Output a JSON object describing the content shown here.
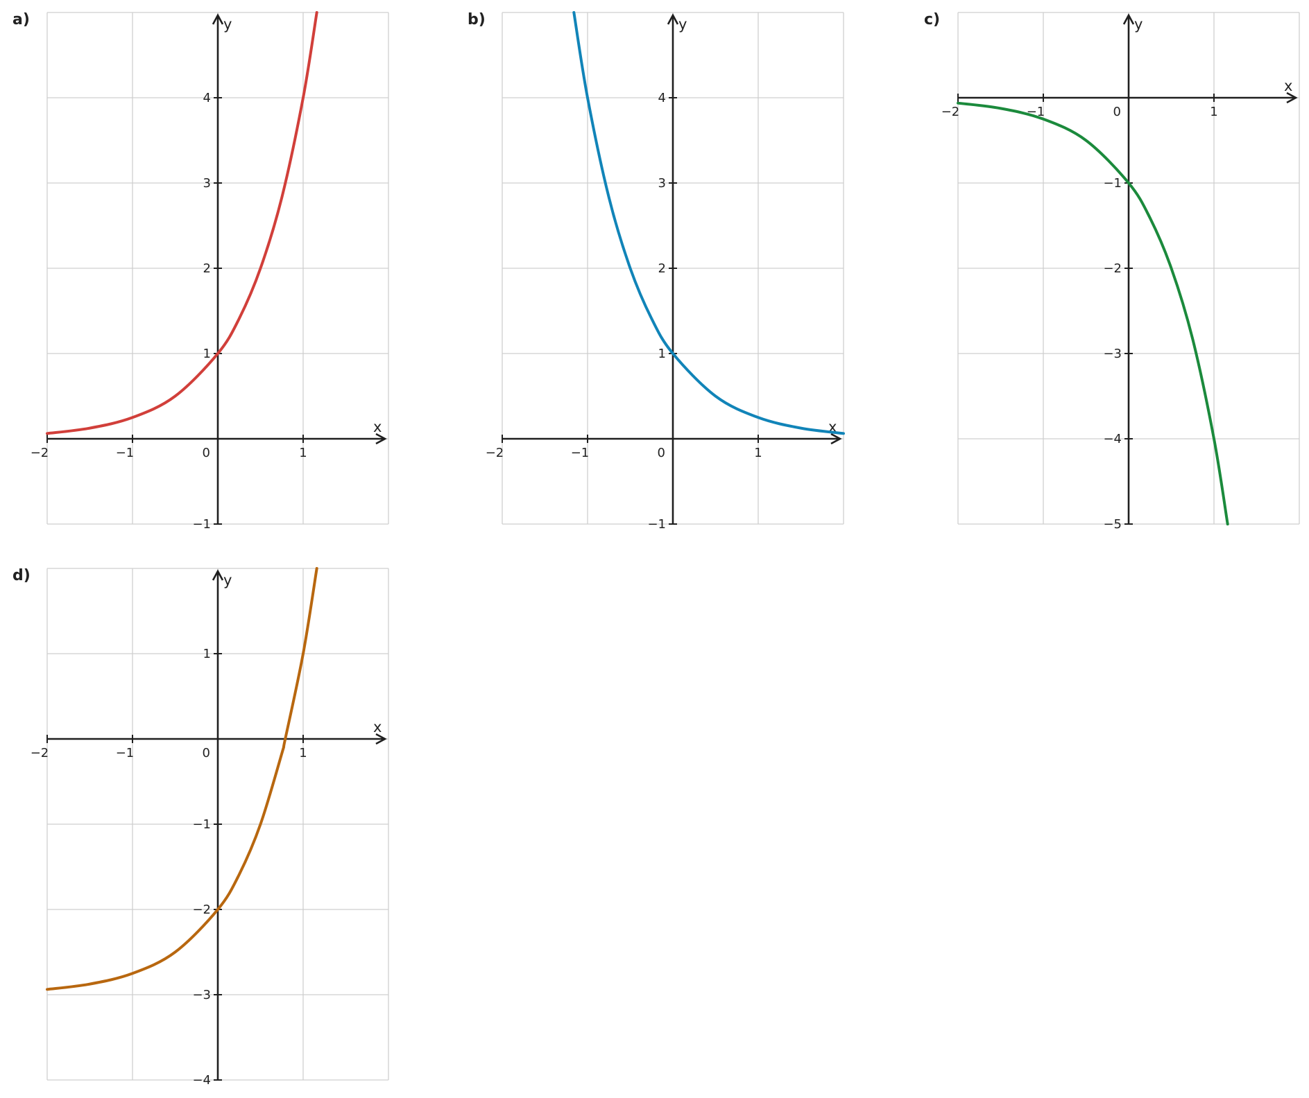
{
  "chart_data": [
    {
      "label": "a)",
      "type": "line",
      "xlim": [
        -2,
        2
      ],
      "ylim": [
        -1,
        5
      ],
      "x_ticks": [
        -2,
        -1,
        0,
        1
      ],
      "x_tick_labels": [
        "−2",
        "−1",
        "0",
        "1"
      ],
      "y_ticks": [
        -1,
        1,
        2,
        3,
        4
      ],
      "y_tick_labels": [
        "−1",
        "1",
        "2",
        "3",
        "4"
      ],
      "xlabel": "x",
      "ylabel": "y",
      "grid": true,
      "curve_color": "#d13f3a",
      "series": [
        {
          "x": [
            -2,
            -1.5,
            -1,
            -0.5,
            0,
            0.25,
            0.5,
            0.75,
            1,
            1.16
          ],
          "y": [
            0.0625,
            0.125,
            0.25,
            0.5,
            1,
            1.41,
            2,
            2.83,
            4,
            5
          ]
        }
      ]
    },
    {
      "label": "b)",
      "type": "line",
      "xlim": [
        -2,
        2
      ],
      "ylim": [
        -1,
        5
      ],
      "x_ticks": [
        -2,
        -1,
        0,
        1
      ],
      "x_tick_labels": [
        "−2",
        "−1",
        "0",
        "1"
      ],
      "y_ticks": [
        -1,
        1,
        2,
        3,
        4
      ],
      "y_tick_labels": [
        "−1",
        "1",
        "2",
        "3",
        "4"
      ],
      "xlabel": "x",
      "ylabel": "y",
      "grid": true,
      "curve_color": "#1184b8",
      "series": [
        {
          "x": [
            -1.16,
            -1,
            -0.75,
            -0.5,
            -0.25,
            0,
            0.5,
            1,
            1.5,
            2
          ],
          "y": [
            5,
            4,
            2.83,
            2,
            1.41,
            1,
            0.5,
            0.25,
            0.125,
            0.0625
          ]
        }
      ]
    },
    {
      "label": "c)",
      "type": "line",
      "xlim": [
        -2,
        2
      ],
      "ylim": [
        -5,
        1
      ],
      "x_ticks": [
        -2,
        -1,
        0,
        1
      ],
      "x_tick_labels": [
        "−2",
        "−1",
        "0",
        "1"
      ],
      "y_ticks": [
        -1,
        -2,
        -3,
        -4,
        -5
      ],
      "y_tick_labels": [
        "−1",
        "−2",
        "−3",
        "−4",
        "−5"
      ],
      "xlabel": "x",
      "ylabel": "y",
      "grid": true,
      "curve_color": "#1b8a3c",
      "series": [
        {
          "x": [
            -2,
            -1.5,
            -1,
            -0.5,
            0,
            0.25,
            0.5,
            0.75,
            1,
            1.16
          ],
          "y": [
            -0.0625,
            -0.125,
            -0.25,
            -0.5,
            -1,
            -1.41,
            -2,
            -2.83,
            -4,
            -5
          ]
        }
      ]
    },
    {
      "label": "d)",
      "type": "line",
      "xlim": [
        -2,
        2
      ],
      "ylim": [
        -4,
        2
      ],
      "x_ticks": [
        -2,
        -1,
        0,
        1
      ],
      "x_tick_labels": [
        "−2",
        "−1",
        "0",
        "1"
      ],
      "y_ticks": [
        1,
        -1,
        -2,
        -3,
        -4
      ],
      "y_tick_labels": [
        "1",
        "−1",
        "−2",
        "−3",
        "−4"
      ],
      "xlabel": "x",
      "ylabel": "y",
      "grid": true,
      "curve_color": "#b8670f",
      "series": [
        {
          "x": [
            -2,
            -1.5,
            -1,
            -0.5,
            0,
            0.25,
            0.5,
            0.75,
            0.79,
            1,
            1.16
          ],
          "y": [
            -2.9375,
            -2.875,
            -2.75,
            -2.5,
            -2,
            -1.59,
            -1,
            -0.17,
            0,
            1,
            2
          ]
        }
      ]
    }
  ]
}
